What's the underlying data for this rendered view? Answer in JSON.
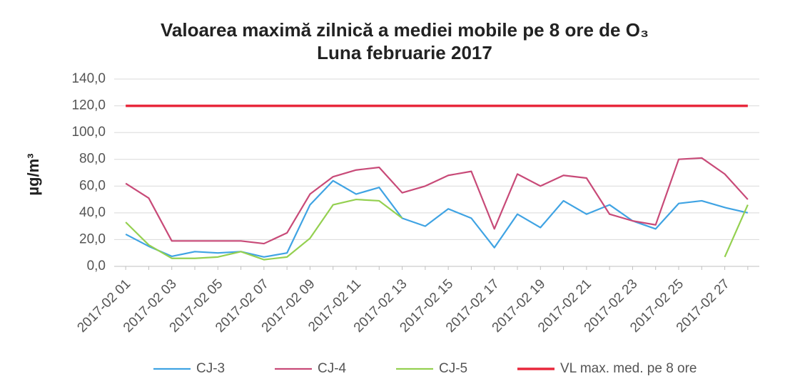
{
  "chart_data": {
    "type": "line",
    "title": "Valoarea maximă zilnică a mediei mobile pe 8 ore de O₃",
    "subtitle": "Luna februarie 2017",
    "y_label": "µg/m³",
    "categories": [
      "2017-02 01",
      null,
      "2017-02 03",
      null,
      "2017-02 05",
      null,
      "2017-02 07",
      null,
      "2017-02 09",
      null,
      "2017-02 11",
      null,
      "2017-02 13",
      null,
      "2017-02 15",
      null,
      "2017-02 17",
      null,
      "2017-02 19",
      null,
      "2017-02 21",
      null,
      "2017-02 23",
      null,
      "2017-02 25",
      null,
      "2017-02 27",
      null
    ],
    "series": [
      {
        "name": "CJ-3",
        "color": "#3fa3e3",
        "values": [
          24,
          15,
          7.5,
          11,
          10,
          11,
          7,
          10,
          46,
          64,
          54,
          59,
          36,
          30,
          43,
          36,
          14,
          39,
          29,
          49,
          39,
          46,
          34,
          28,
          47,
          49,
          44,
          40
        ]
      },
      {
        "name": "CJ-4",
        "color": "#c84a78",
        "values": [
          62,
          51,
          19,
          19,
          19,
          19,
          17,
          25,
          54,
          67,
          72,
          74,
          55,
          60,
          68,
          71,
          28,
          69,
          60,
          68,
          66,
          39,
          34,
          31,
          80,
          81,
          69,
          50
        ]
      },
      {
        "name": "CJ-5",
        "color": "#94d050",
        "values": [
          33,
          16,
          6,
          6,
          7,
          11,
          5,
          7,
          21,
          46,
          50,
          49,
          36,
          null,
          null,
          null,
          null,
          null,
          null,
          null,
          null,
          null,
          null,
          null,
          null,
          null,
          7,
          46
        ]
      },
      {
        "name": "VL max. med. pe 8 ore",
        "color": "#e8283c",
        "values": [
          120,
          120,
          120,
          120,
          120,
          120,
          120,
          120,
          120,
          120,
          120,
          120,
          120,
          120,
          120,
          120,
          120,
          120,
          120,
          120,
          120,
          120,
          120,
          120,
          120,
          120,
          120,
          120
        ]
      }
    ],
    "ylim": [
      0,
      140
    ],
    "yticks": [
      {
        "value": 0,
        "label": "0,0"
      },
      {
        "value": 20,
        "label": "20,0"
      },
      {
        "value": 40,
        "label": "40,0"
      },
      {
        "value": 60,
        "label": "60,0"
      },
      {
        "value": 80,
        "label": "80,0"
      },
      {
        "value": 100,
        "label": "100,0"
      },
      {
        "value": 120,
        "label": "120,0"
      },
      {
        "value": 140,
        "label": "140,0"
      }
    ],
    "grid": true,
    "legend": "bottom"
  }
}
